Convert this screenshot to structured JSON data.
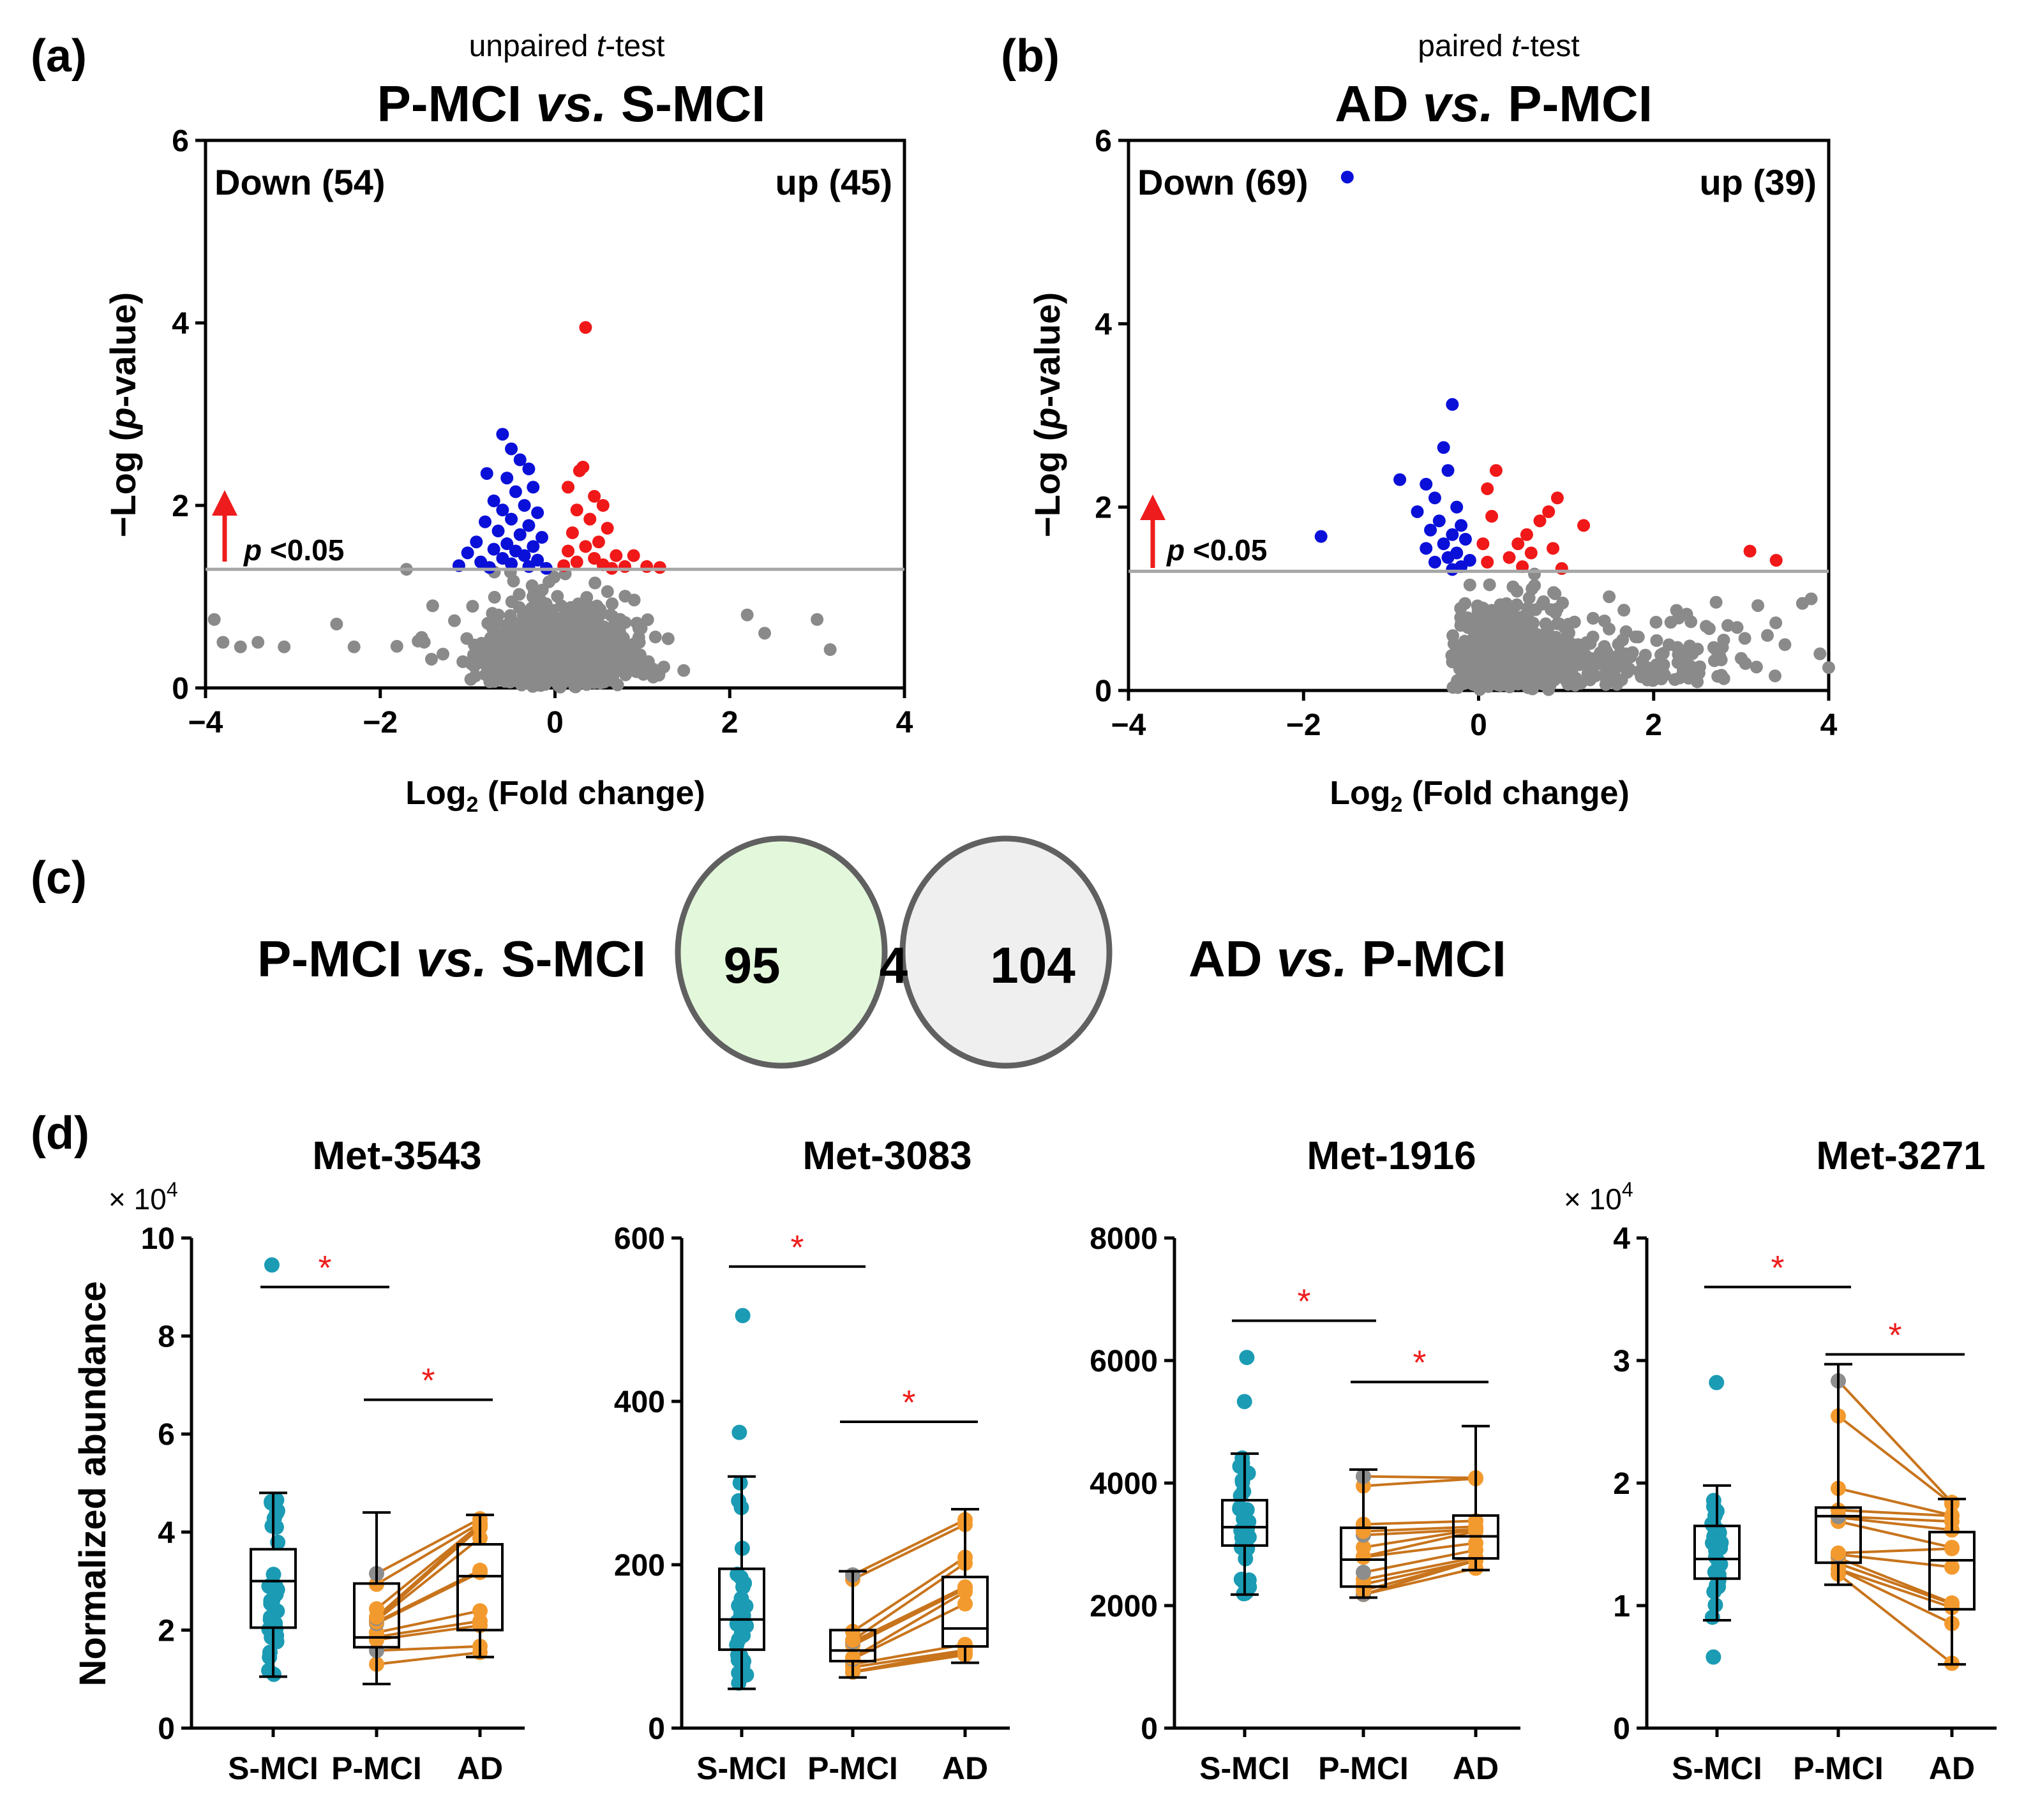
{
  "colors": {
    "down": "#0a10d8",
    "up": "#f01818",
    "ns": "#8a8a8a",
    "threshold_line": "#a6a6a6",
    "arrow": "#ee1c1c",
    "smci": "#1b9bb4",
    "pmci_ad": "#f39a2e",
    "paired_line": "#c8741c",
    "gray_dot": "#8d8d8d",
    "sig_star": "#ee1c1c",
    "venn_left_fill": "#e3f8db",
    "venn_overlap_fill": "#9ccc84",
    "venn_right_fill": "#efefef",
    "venn_stroke": "#606060"
  },
  "panel_a": {
    "label": "(a)",
    "test": "unpaired t-test",
    "test_prefix": "unpaired ",
    "test_italic": "t",
    "test_suffix": "-test",
    "title_left": "P-MCI ",
    "title_italic": "vs.",
    "title_right": " S-MCI",
    "down_label": "Down (54)",
    "up_label": "up (45)",
    "threshold_label": "p <0.05",
    "threshold_p": "p",
    "threshold_rest": " <0.05"
  },
  "panel_b": {
    "label": "(b)",
    "test": "paired t-test",
    "test_prefix": "paired ",
    "test_italic": "t",
    "test_suffix": "-test",
    "title_left": "AD ",
    "title_italic": "vs.",
    "title_right": " P-MCI",
    "down_label": "Down (69)",
    "up_label": "up (39)",
    "threshold_label": "p <0.05",
    "threshold_p": "p",
    "threshold_rest": " <0.05"
  },
  "volcano_axes": {
    "xlabel_prefix": "Log",
    "xlabel_sub": "2",
    "xlabel_suffix": " (Fold change)",
    "ylabel_prefix": "−Log (",
    "ylabel_italic": "p",
    "ylabel_suffix": "-value)",
    "xticks": [
      "−4",
      "−2",
      "0",
      "2",
      "4"
    ],
    "yticks": [
      "0",
      "2",
      "4",
      "6"
    ]
  },
  "panel_c": {
    "label": "(c)",
    "left_label_a": "P-MCI ",
    "left_label_i": "vs.",
    "left_label_b": " S-MCI",
    "right_label_a": "AD ",
    "right_label_i": "vs.",
    "right_label_b": " P-MCI",
    "left_only": "95",
    "overlap": "4",
    "right_only": "104"
  },
  "panel_d": {
    "label": "(d)",
    "ylabel": "Normalized abundance",
    "sig_marker": "*",
    "groups": [
      "S-MCI",
      "P-MCI",
      "AD"
    ]
  },
  "chart_data": [
    {
      "type": "scatter",
      "subtype": "volcano",
      "title": "P-MCI vs. S-MCI",
      "subtitle": "unpaired t-test",
      "xlabel": "Log2 (Fold change)",
      "ylabel": "−Log (p-value)",
      "xlim": [
        -4,
        4
      ],
      "ylim": [
        0,
        6
      ],
      "threshold_y": 1.3,
      "counts": {
        "down": 54,
        "up": 45
      },
      "series": [
        {
          "name": "down",
          "points": [
            [
              -0.6,
              2.78
            ],
            [
              -0.78,
              2.35
            ],
            [
              -0.5,
              2.62
            ],
            [
              -0.4,
              2.5
            ],
            [
              -0.3,
              2.4
            ],
            [
              -0.55,
              2.3
            ],
            [
              -0.25,
              2.2
            ],
            [
              -0.45,
              2.15
            ],
            [
              -0.7,
              2.05
            ],
            [
              -0.35,
              2.0
            ],
            [
              -0.6,
              1.95
            ],
            [
              -0.2,
              1.92
            ],
            [
              -0.5,
              1.85
            ],
            [
              -0.8,
              1.82
            ],
            [
              -0.3,
              1.78
            ],
            [
              -0.65,
              1.72
            ],
            [
              -0.4,
              1.68
            ],
            [
              -0.15,
              1.65
            ],
            [
              -0.9,
              1.6
            ],
            [
              -0.55,
              1.58
            ],
            [
              -0.25,
              1.55
            ],
            [
              -0.7,
              1.52
            ],
            [
              -0.45,
              1.5
            ],
            [
              -1.0,
              1.48
            ],
            [
              -0.35,
              1.45
            ],
            [
              -0.6,
              1.42
            ],
            [
              -0.2,
              1.4
            ],
            [
              -0.85,
              1.38
            ],
            [
              -0.5,
              1.36
            ],
            [
              -1.1,
              1.34
            ],
            [
              -0.3,
              1.33
            ],
            [
              -0.75,
              1.32
            ],
            [
              -0.1,
              1.31
            ]
          ]
        },
        {
          "name": "up",
          "points": [
            [
              0.35,
              3.95
            ],
            [
              0.32,
              2.42
            ],
            [
              0.28,
              2.38
            ],
            [
              0.15,
              2.2
            ],
            [
              0.45,
              2.1
            ],
            [
              0.55,
              2.0
            ],
            [
              0.25,
              1.95
            ],
            [
              0.4,
              1.85
            ],
            [
              0.6,
              1.75
            ],
            [
              0.2,
              1.7
            ],
            [
              0.5,
              1.6
            ],
            [
              0.35,
              1.55
            ],
            [
              0.15,
              1.5
            ],
            [
              0.7,
              1.45
            ],
            [
              0.45,
              1.42
            ],
            [
              0.9,
              1.45
            ],
            [
              0.25,
              1.38
            ],
            [
              0.55,
              1.35
            ],
            [
              0.8,
              1.33
            ],
            [
              1.05,
              1.33
            ],
            [
              1.2,
              1.32
            ],
            [
              0.1,
              1.34
            ],
            [
              0.65,
              1.31
            ]
          ]
        },
        {
          "name": "not significant",
          "points": [
            [
              -3.9,
              0.75
            ],
            [
              -3.8,
              0.5
            ],
            [
              -3.6,
              0.45
            ],
            [
              -3.4,
              0.5
            ],
            [
              -3.1,
              0.45
            ],
            [
              -2.5,
              0.7
            ],
            [
              -2.3,
              0.45
            ],
            [
              -1.7,
              1.3
            ],
            [
              -1.4,
              0.9
            ],
            [
              3.0,
              0.75
            ],
            [
              3.15,
              0.42
            ],
            [
              2.4,
              0.6
            ],
            [
              2.2,
              0.8
            ]
          ]
        }
      ]
    },
    {
      "type": "scatter",
      "subtype": "volcano",
      "title": "AD vs. P-MCI",
      "subtitle": "paired t-test",
      "xlabel": "Log2 (Fold change)",
      "ylabel": "−Log (p-value)",
      "xlim": [
        -4,
        4
      ],
      "ylim": [
        0,
        6
      ],
      "threshold_y": 1.3,
      "counts": {
        "down": 69,
        "up": 39
      },
      "series": [
        {
          "name": "down",
          "points": [
            [
              -1.5,
              5.6
            ],
            [
              -0.3,
              3.12
            ],
            [
              -0.4,
              2.65
            ],
            [
              -0.9,
              2.3
            ],
            [
              -0.6,
              2.25
            ],
            [
              -0.35,
              2.4
            ],
            [
              -0.5,
              2.1
            ],
            [
              -0.25,
              2.0
            ],
            [
              -0.7,
              1.95
            ],
            [
              -0.45,
              1.85
            ],
            [
              -0.2,
              1.8
            ],
            [
              -0.55,
              1.75
            ],
            [
              -0.3,
              1.7
            ],
            [
              -1.8,
              1.68
            ],
            [
              -0.15,
              1.65
            ],
            [
              -0.4,
              1.6
            ],
            [
              -0.6,
              1.55
            ],
            [
              -0.25,
              1.5
            ],
            [
              -0.35,
              1.45
            ],
            [
              -0.1,
              1.42
            ],
            [
              -0.5,
              1.4
            ],
            [
              -0.2,
              1.35
            ],
            [
              -0.3,
              1.32
            ]
          ]
        },
        {
          "name": "up",
          "points": [
            [
              0.2,
              2.4
            ],
            [
              0.1,
              2.2
            ],
            [
              0.15,
              1.9
            ],
            [
              0.55,
              1.7
            ],
            [
              0.45,
              1.6
            ],
            [
              0.8,
              1.95
            ],
            [
              0.9,
              2.1
            ],
            [
              0.7,
              1.85
            ],
            [
              1.2,
              1.8
            ],
            [
              0.6,
              1.5
            ],
            [
              0.35,
              1.45
            ],
            [
              0.85,
              1.55
            ],
            [
              0.05,
              1.6
            ],
            [
              0.1,
              1.4
            ],
            [
              0.5,
              1.35
            ],
            [
              0.95,
              1.33
            ],
            [
              3.1,
              1.52
            ],
            [
              3.4,
              1.42
            ]
          ]
        },
        {
          "name": "not significant",
          "points": [
            [
              3.5,
              0.5
            ],
            [
              3.7,
              0.95
            ],
            [
              3.9,
              0.4
            ],
            [
              4.0,
              0.25
            ],
            [
              3.3,
              0.6
            ],
            [
              3.8,
              1.0
            ],
            [
              2.8,
              0.55
            ],
            [
              3.0,
              0.35
            ],
            [
              2.6,
              0.7
            ]
          ]
        }
      ]
    },
    {
      "type": "venn",
      "sets": [
        "P-MCI vs. S-MCI",
        "AD vs. P-MCI"
      ],
      "left_only": 95,
      "overlap": 4,
      "right_only": 104
    },
    {
      "type": "box",
      "title": "Met-3543",
      "categories": [
        "S-MCI",
        "P-MCI",
        "AD"
      ],
      "ylim": [
        0,
        10
      ],
      "yticks": [
        "0",
        "2",
        "4",
        "6",
        "8",
        "10"
      ],
      "multiplier": "× 10",
      "multiplier_exp": "4",
      "boxes": [
        {
          "min": 1.05,
          "q1": 2.05,
          "median": 3.0,
          "q3": 3.65,
          "max": 4.8,
          "outliers": [
            9.45
          ]
        },
        {
          "min": 0.9,
          "q1": 1.65,
          "median": 1.85,
          "q3": 2.95,
          "max": 4.4,
          "outliers": []
        },
        {
          "min": 1.45,
          "q1": 2.0,
          "median": 3.1,
          "q3": 3.75,
          "max": 4.35,
          "outliers": []
        }
      ],
      "significance": [
        {
          "from": "S-MCI",
          "to": "P-MCI",
          "y": 9.0
        },
        {
          "from": "P-MCI",
          "to": "AD",
          "y": 6.7
        }
      ]
    },
    {
      "type": "box",
      "title": "Met-3083",
      "categories": [
        "S-MCI",
        "P-MCI",
        "AD"
      ],
      "ylim": [
        0,
        600
      ],
      "yticks": [
        "0",
        "200",
        "400",
        "600"
      ],
      "boxes": [
        {
          "min": 48,
          "q1": 96,
          "median": 133,
          "q3": 195,
          "max": 308,
          "outliers": [
            505,
            362
          ]
        },
        {
          "min": 62,
          "q1": 82,
          "median": 95,
          "q3": 120,
          "max": 192,
          "outliers": []
        },
        {
          "min": 80,
          "q1": 100,
          "median": 122,
          "q3": 185,
          "max": 268,
          "outliers": []
        }
      ],
      "significance": [
        {
          "from": "S-MCI",
          "to": "P-MCI",
          "y": 565
        },
        {
          "from": "P-MCI",
          "to": "AD",
          "y": 375
        }
      ]
    },
    {
      "type": "box",
      "title": "Met-1916",
      "categories": [
        "S-MCI",
        "P-MCI",
        "AD"
      ],
      "ylim": [
        0,
        8000
      ],
      "yticks": [
        "0",
        "2000",
        "4000",
        "6000",
        "8000"
      ],
      "boxes": [
        {
          "min": 2180,
          "q1": 2980,
          "median": 3280,
          "q3": 3720,
          "max": 4480,
          "outliers": [
            6050,
            5330
          ]
        },
        {
          "min": 2130,
          "q1": 2310,
          "median": 2750,
          "q3": 3270,
          "max": 4220,
          "outliers": []
        },
        {
          "min": 2580,
          "q1": 2770,
          "median": 3130,
          "q3": 3470,
          "max": 4930,
          "outliers": []
        }
      ],
      "significance": [
        {
          "from": "S-MCI",
          "to": "P-MCI",
          "y": 6650
        },
        {
          "from": "P-MCI",
          "to": "AD",
          "y": 5650
        }
      ]
    },
    {
      "type": "box",
      "title": "Met-3271",
      "categories": [
        "S-MCI",
        "P-MCI",
        "AD"
      ],
      "ylim": [
        0,
        4
      ],
      "yticks": [
        "0",
        "1",
        "2",
        "3",
        "4"
      ],
      "multiplier": "× 10",
      "multiplier_exp": "4",
      "boxes": [
        {
          "min": 0.88,
          "q1": 1.22,
          "median": 1.38,
          "q3": 1.65,
          "max": 1.98,
          "outliers": [
            2.82,
            0.58
          ]
        },
        {
          "min": 1.17,
          "q1": 1.35,
          "median": 1.73,
          "q3": 1.8,
          "max": 2.97,
          "outliers": []
        },
        {
          "min": 0.52,
          "q1": 0.97,
          "median": 1.37,
          "q3": 1.6,
          "max": 1.87,
          "outliers": []
        }
      ],
      "significance": [
        {
          "from": "S-MCI",
          "to": "P-MCI",
          "y": 3.6
        },
        {
          "from": "P-MCI",
          "to": "AD",
          "y": 3.05
        }
      ]
    }
  ]
}
